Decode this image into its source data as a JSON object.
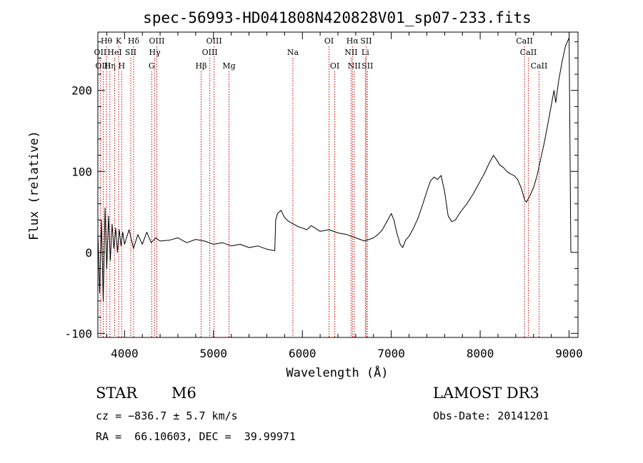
{
  "chart_data": {
    "type": "line",
    "title": "spec-56993-HD041808N420828V01_sp07-233.fits",
    "xlabel": "Wavelength (Å)",
    "ylabel": "Flux (relative)",
    "xlim": [
      3700,
      9100
    ],
    "ylim": [
      -105,
      272
    ],
    "xticks": [
      4000,
      5000,
      6000,
      7000,
      8000,
      9000
    ],
    "yticks": [
      -100,
      0,
      100,
      200
    ],
    "series": [
      {
        "name": "flux",
        "x": [
          3700,
          3720,
          3740,
          3760,
          3780,
          3800,
          3820,
          3840,
          3860,
          3880,
          3900,
          3920,
          3940,
          3960,
          3980,
          4000,
          4050,
          4100,
          4150,
          4200,
          4250,
          4300,
          4350,
          4400,
          4500,
          4600,
          4700,
          4800,
          4900,
          5000,
          5100,
          5200,
          5300,
          5400,
          5500,
          5600,
          5690,
          5700,
          5720,
          5760,
          5800,
          5850,
          5900,
          5950,
          6000,
          6050,
          6100,
          6200,
          6300,
          6400,
          6500,
          6550,
          6600,
          6650,
          6700,
          6750,
          6800,
          6850,
          6900,
          6950,
          7000,
          7030,
          7060,
          7100,
          7130,
          7160,
          7200,
          7250,
          7300,
          7350,
          7400,
          7440,
          7480,
          7520,
          7560,
          7600,
          7640,
          7680,
          7720,
          7780,
          7850,
          7920,
          8000,
          8050,
          8100,
          8150,
          8180,
          8220,
          8260,
          8300,
          8340,
          8380,
          8420,
          8460,
          8500,
          8520,
          8560,
          8600,
          8640,
          8680,
          8720,
          8760,
          8800,
          8830,
          8850,
          8880,
          8920,
          8960,
          9000,
          9020
        ],
        "y": [
          25,
          -50,
          40,
          -60,
          55,
          -20,
          45,
          -10,
          35,
          5,
          30,
          0,
          28,
          8,
          25,
          10,
          28,
          5,
          22,
          10,
          25,
          12,
          18,
          14,
          15,
          18,
          12,
          16,
          14,
          10,
          12,
          8,
          10,
          6,
          8,
          4,
          2,
          40,
          48,
          52,
          43,
          38,
          35,
          32,
          30,
          28,
          33,
          26,
          28,
          24,
          22,
          20,
          18,
          16,
          14,
          16,
          18,
          22,
          28,
          38,
          48,
          40,
          25,
          10,
          6,
          15,
          20,
          30,
          42,
          58,
          75,
          88,
          93,
          90,
          95,
          75,
          45,
          38,
          40,
          50,
          60,
          72,
          88,
          98,
          110,
          120,
          115,
          108,
          105,
          100,
          97,
          95,
          90,
          80,
          65,
          62,
          70,
          80,
          95,
          115,
          135,
          158,
          182,
          200,
          185,
          210,
          235,
          255,
          265,
          0
        ]
      }
    ],
    "line_markers": [
      {
        "label": "Hθ",
        "wavelength": 3797,
        "row": 1
      },
      {
        "label": "OII",
        "wavelength": 3727,
        "row": 2
      },
      {
        "label": "OIII",
        "wavelength": 3760,
        "row": 3
      },
      {
        "label": "K",
        "wavelength": 3934,
        "row": 1
      },
      {
        "label": "HeI",
        "wavelength": 3889,
        "row": 2
      },
      {
        "label": "Hη",
        "wavelength": 3835,
        "row": 3
      },
      {
        "label": "Hδ",
        "wavelength": 4102,
        "row": 1
      },
      {
        "label": "SII",
        "wavelength": 4070,
        "row": 2
      },
      {
        "label": "H",
        "wavelength": 3968,
        "row": 3
      },
      {
        "label": "OIII",
        "wavelength": 4363,
        "row": 1
      },
      {
        "label": "Hγ",
        "wavelength": 4340,
        "row": 2
      },
      {
        "label": "G",
        "wavelength": 4305,
        "row": 3
      },
      {
        "label": "Hβ",
        "wavelength": 4861,
        "row": 3
      },
      {
        "label": "OIII",
        "wavelength": 5007,
        "row": 1
      },
      {
        "label": "OIII",
        "wavelength": 4959,
        "row": 2
      },
      {
        "label": "Mg",
        "wavelength": 5175,
        "row": 3
      },
      {
        "label": "Na",
        "wavelength": 5893,
        "row": 2
      },
      {
        "label": "OI",
        "wavelength": 6300,
        "row": 1
      },
      {
        "label": "OI",
        "wavelength": 6364,
        "row": 3
      },
      {
        "label": "Hα",
        "wavelength": 6563,
        "row": 1
      },
      {
        "label": "NII",
        "wavelength": 6548,
        "row": 2
      },
      {
        "label": "NII",
        "wavelength": 6583,
        "row": 3
      },
      {
        "label": "SII",
        "wavelength": 6717,
        "row": 1
      },
      {
        "label": "Li",
        "wavelength": 6708,
        "row": 2
      },
      {
        "label": "SII",
        "wavelength": 6731,
        "row": 3
      },
      {
        "label": "CaII",
        "wavelength": 8498,
        "row": 1
      },
      {
        "label": "CaII",
        "wavelength": 8542,
        "row": 2
      },
      {
        "label": "CaII",
        "wavelength": 8662,
        "row": 3
      }
    ]
  },
  "info": {
    "object_class": "STAR",
    "subclass": "M6",
    "survey": "LAMOST DR3",
    "cz": "cz = −836.7 ± 5.7 km/s",
    "obs_date": "Obs-Date: 20141201",
    "coords": "RA =  66.10603, DEC =  39.99971"
  },
  "colors": {
    "marker_line": "#cc0000",
    "spectrum": "#000000"
  }
}
